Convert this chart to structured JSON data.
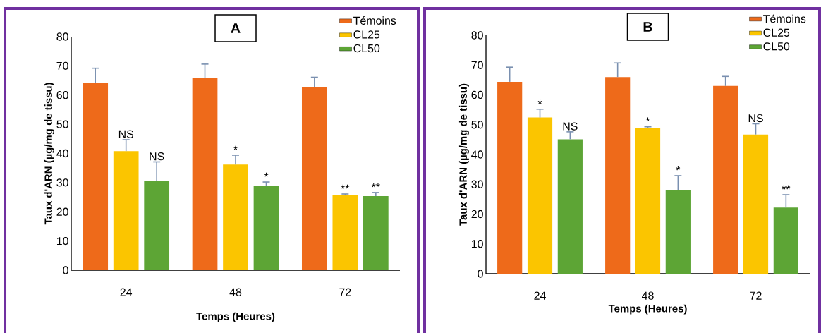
{
  "chart_data": [
    {
      "type": "bar",
      "title": "A",
      "xlabel": "Temps (Heures)",
      "ylabel": "Taux d'ARN (µg/mg de tissu)",
      "categories": [
        "24",
        "48",
        "72"
      ],
      "ylim": [
        0,
        80
      ],
      "yticks": [
        0,
        10,
        20,
        30,
        40,
        50,
        60,
        70,
        80
      ],
      "legend": "top right",
      "series": [
        {
          "name": "Témoins",
          "color": "#ee6a1a",
          "values": [
            64.2,
            65.9,
            62.7
          ],
          "errors": [
            [
              64.2,
              69.2
            ],
            [
              65.9,
              70.6
            ],
            [
              62.7,
              66.1
            ]
          ],
          "value_labels": [
            null,
            null,
            null
          ]
        },
        {
          "name": "CL25",
          "color": "#fbc500",
          "values": [
            40.8,
            36.2,
            25.6
          ],
          "errors": [
            [
              40.8,
              44.7
            ],
            [
              36.2,
              39.4
            ],
            [
              25.6,
              26.1
            ]
          ],
          "value_labels": [
            "NS",
            "*",
            "**"
          ]
        },
        {
          "name": "CL50",
          "color": "#5da535",
          "values": [
            30.5,
            29.0,
            25.4
          ],
          "errors": [
            [
              30.5,
              37.1
            ],
            [
              29.0,
              30.2
            ],
            [
              25.4,
              26.6
            ]
          ],
          "value_labels": [
            "NS",
            "*",
            "**"
          ]
        }
      ]
    },
    {
      "type": "bar",
      "title": "B",
      "xlabel": "Temps (Heures)",
      "ylabel": "Taux d'ARN (µg/mg de tissu)",
      "categories": [
        "24",
        "48",
        "72"
      ],
      "ylim": [
        0,
        80
      ],
      "yticks": [
        0,
        10,
        20,
        30,
        40,
        50,
        60,
        70,
        80
      ],
      "legend": "top right",
      "series": [
        {
          "name": "Témoins",
          "color": "#ee6a1a",
          "values": [
            64.4,
            66.0,
            63.0
          ],
          "errors": [
            [
              64.4,
              69.3
            ],
            [
              66.0,
              70.7
            ],
            [
              63.0,
              66.2
            ]
          ],
          "value_labels": [
            null,
            null,
            null
          ]
        },
        {
          "name": "CL25",
          "color": "#fbc500",
          "values": [
            52.4,
            48.8,
            46.7
          ],
          "errors": [
            [
              52.4,
              55.2
            ],
            [
              48.8,
              49.3
            ],
            [
              46.7,
              50.3
            ]
          ],
          "value_labels": [
            "*",
            "*",
            "NS"
          ]
        },
        {
          "name": "CL50",
          "color": "#5da535",
          "values": [
            45.1,
            28.0,
            22.2
          ],
          "errors": [
            [
              45.1,
              47.6
            ],
            [
              28.0,
              32.9
            ],
            [
              22.2,
              26.5
            ]
          ],
          "value_labels": [
            "NS",
            "*",
            "**"
          ]
        }
      ]
    }
  ]
}
